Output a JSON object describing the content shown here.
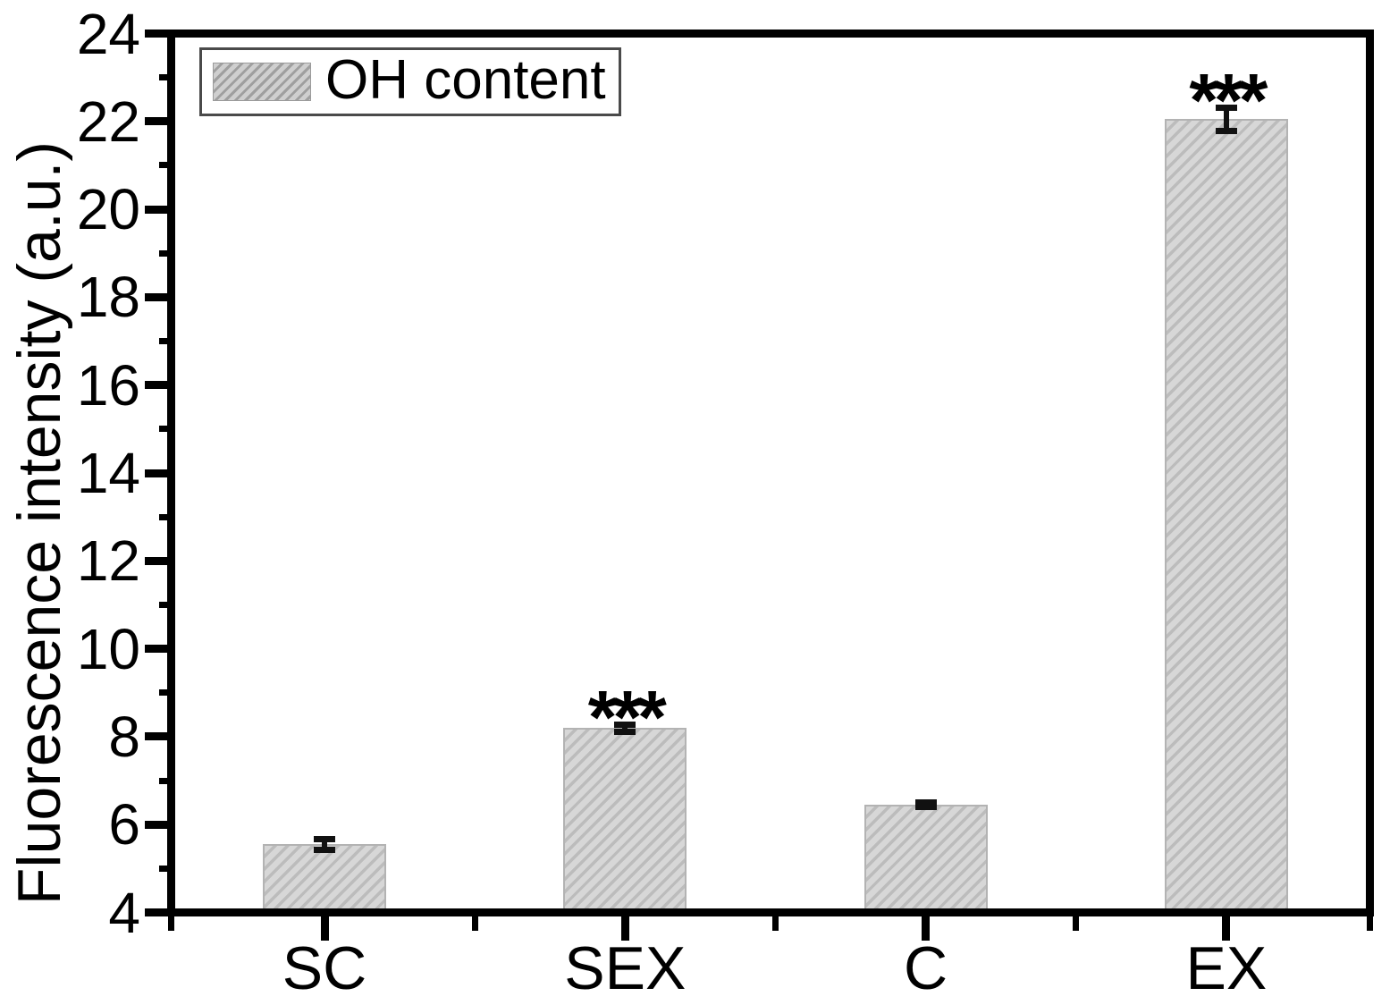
{
  "figure": {
    "kind": "scientific bar chart with error bars and significance markers"
  },
  "chart_data": {
    "type": "bar",
    "title": "",
    "xlabel": "",
    "ylabel": "Fluorescence intensity (a.u.)",
    "categories": [
      "SC",
      "SEX",
      "C",
      "EX"
    ],
    "series": [
      {
        "name": "OH content",
        "values": [
          5.55,
          8.2,
          6.45,
          22.05
        ],
        "errors": [
          0.12,
          0.08,
          0.05,
          0.27
        ],
        "significance": [
          "",
          "***",
          "",
          "***"
        ]
      }
    ],
    "ylim": [
      4,
      24
    ],
    "ytick_step": 2,
    "yticks": [
      4,
      6,
      8,
      10,
      12,
      14,
      16,
      18,
      20,
      22,
      24
    ],
    "legend": {
      "label": "OH content",
      "position": "top-left"
    },
    "grid": false,
    "hatch_pattern": "diagonal-forward-slash",
    "colors": {
      "bar_fill": "#d7d7d7",
      "bar_hatch": "#bcbcbc",
      "bar_edge": "#b3b3b3",
      "frame": "#000000",
      "error_bar": "#111111",
      "text": "#000000"
    }
  }
}
